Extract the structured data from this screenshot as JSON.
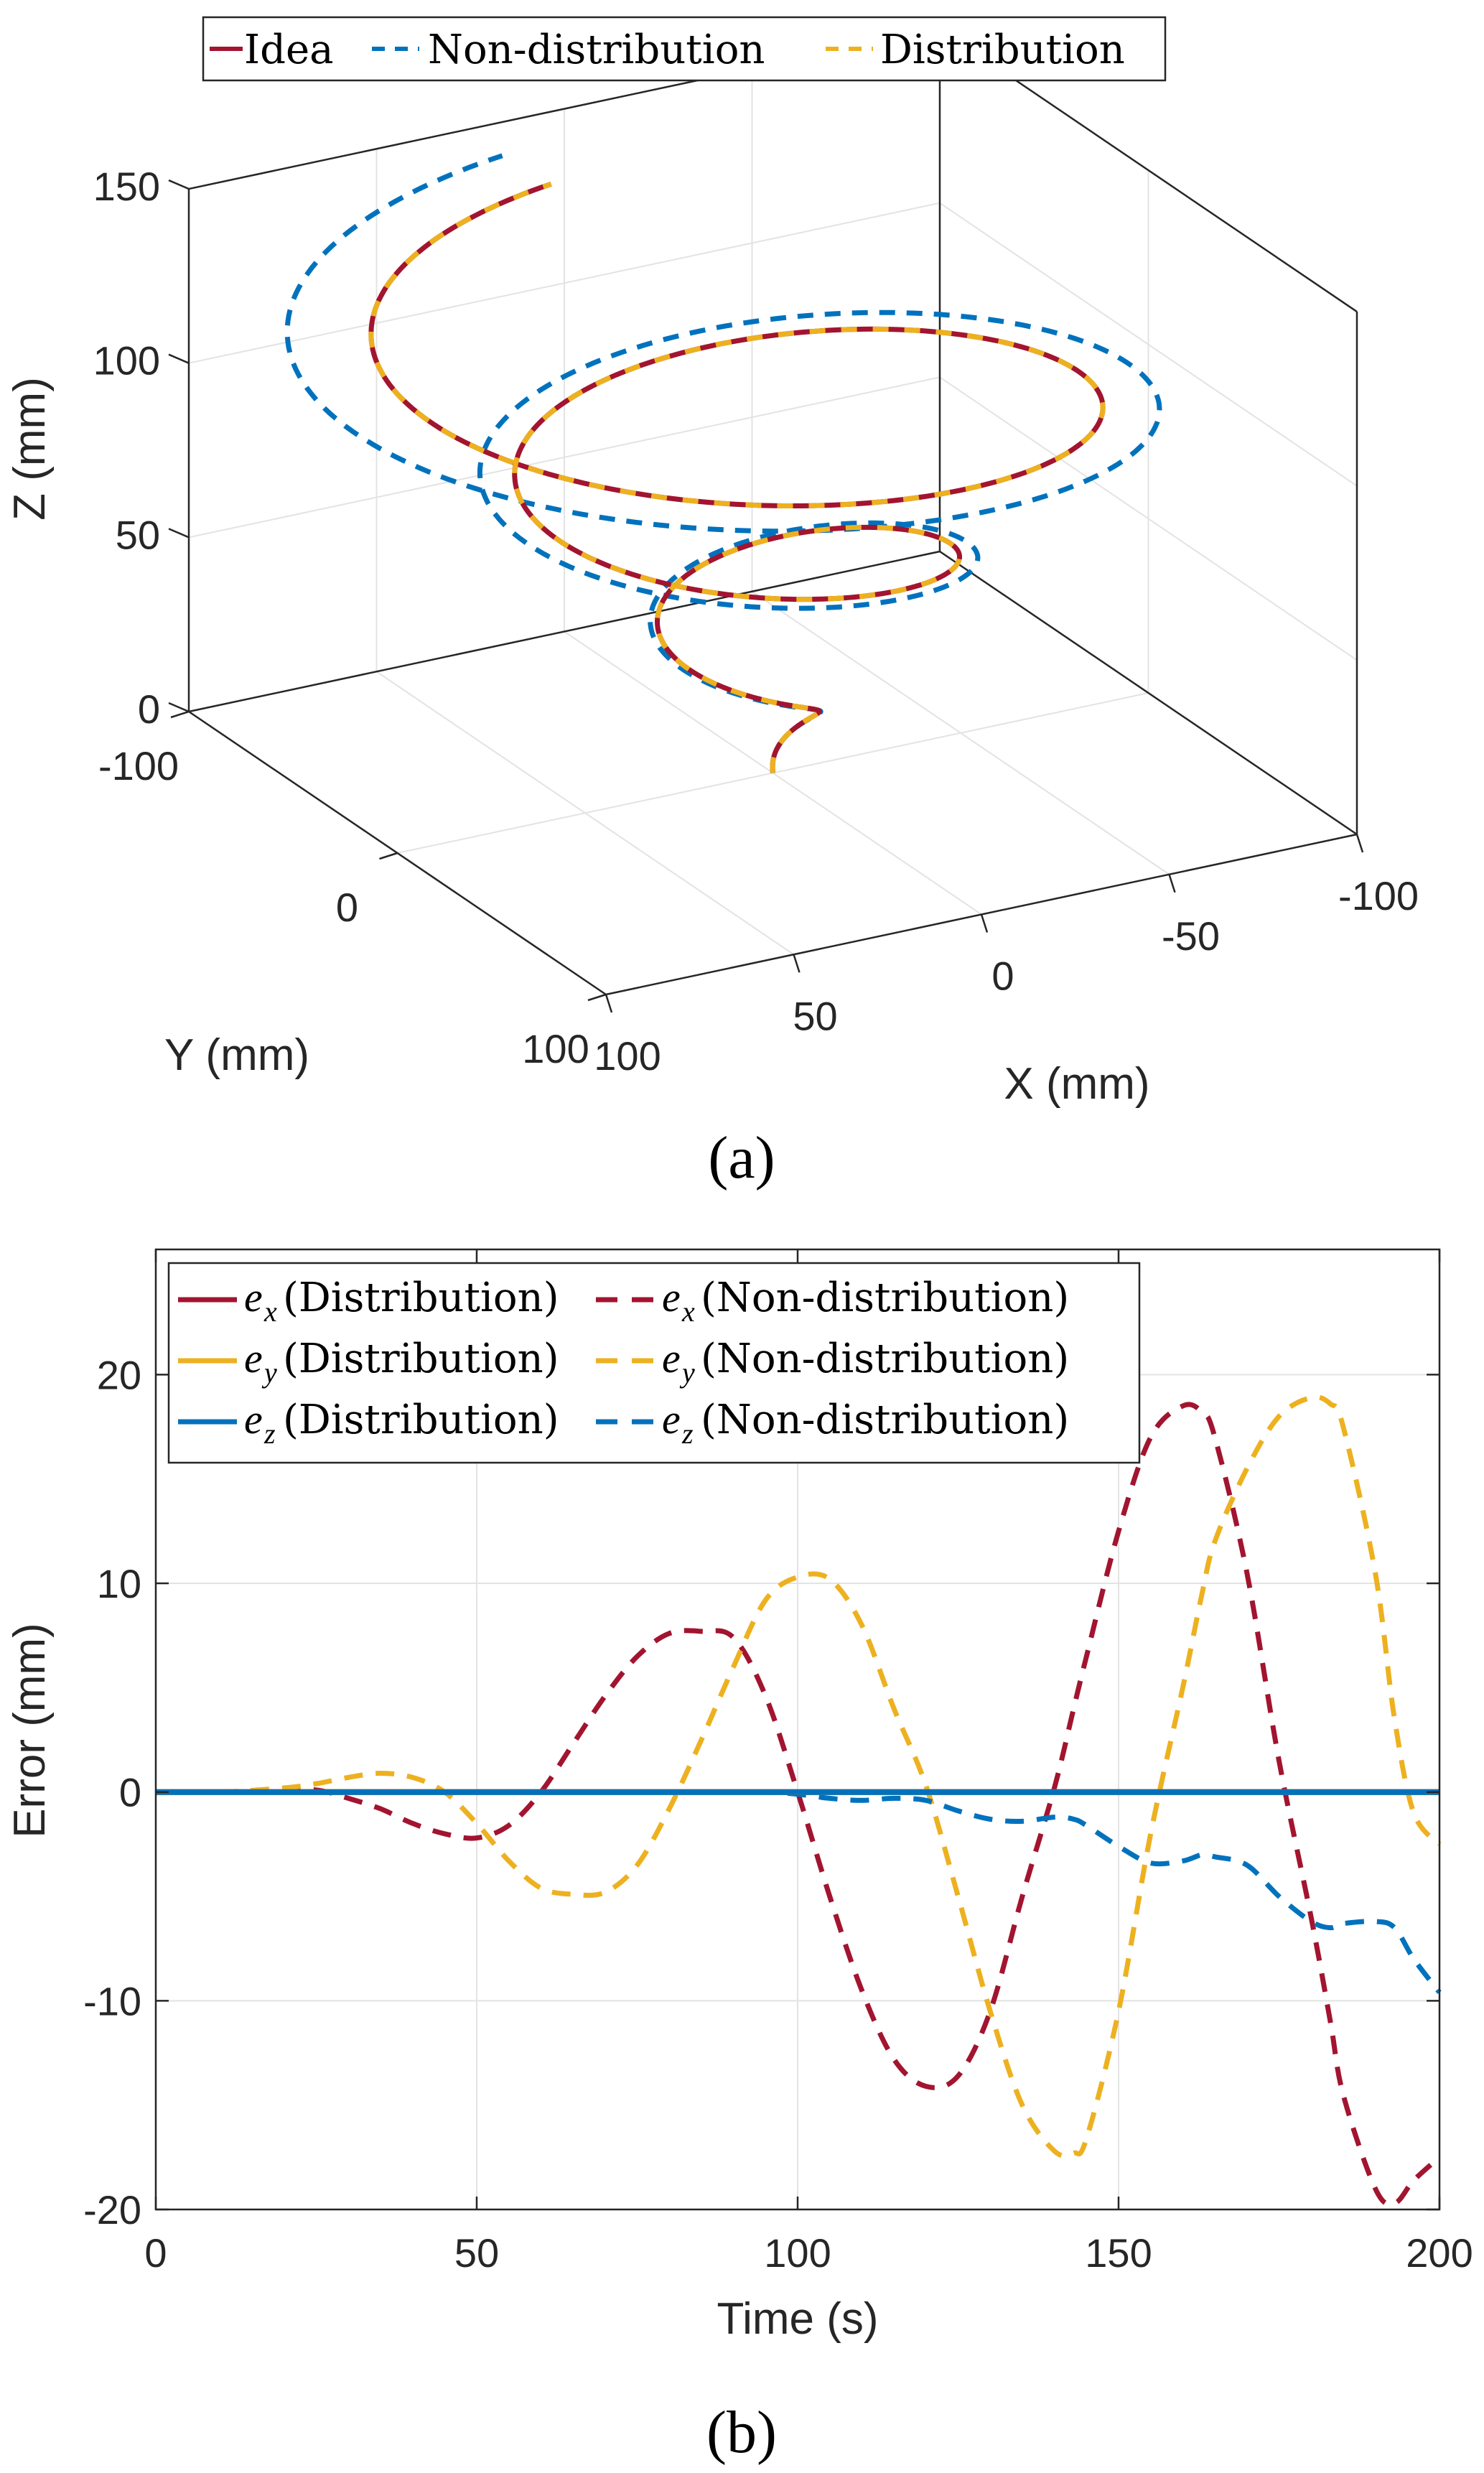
{
  "colors": {
    "red": "#A2142F",
    "blue": "#0072BD",
    "yellow": "#EDB120",
    "axis": "#262626",
    "grid": "#e3e3e3"
  },
  "chart_data": [
    {
      "type": "line",
      "subtype": "3d-line",
      "caption": "(a)",
      "xlabel": "X (mm)",
      "ylabel": "Y (mm)",
      "zlabel": "Z (mm)",
      "xlim": [
        -100,
        100
      ],
      "ylim": [
        -100,
        100
      ],
      "zlim": [
        0,
        150
      ],
      "xticks": [
        "100",
        "50",
        "0",
        "-50",
        "-100"
      ],
      "xtick_values": [
        100,
        50,
        0,
        -50,
        -100
      ],
      "yticks": [
        "-100",
        "0",
        "100"
      ],
      "ytick_values": [
        -100,
        0,
        100
      ],
      "zticks": [
        "0",
        "50",
        "100",
        "150"
      ],
      "ztick_values": [
        0,
        50,
        100,
        150
      ],
      "grid": true,
      "legend": {
        "placement": "top",
        "orientation": "horizontal",
        "entries": [
          {
            "label": "Idea",
            "color": "#A2142F",
            "style": "solid"
          },
          {
            "label": "Non-distribution",
            "color": "#0072BD",
            "style": "dashed"
          },
          {
            "label": "Distribution",
            "color": "#EDB120",
            "style": "dashed"
          }
        ]
      },
      "series": [
        {
          "name": "Idea",
          "description": "conical spiral, radius growing from 0 to ~100 mm while z rises from 0 to ~130 mm over ~3 turns"
        },
        {
          "name": "Non-distribution",
          "description": "spiral following Idea with growing radial deviation, outer rings offset ~10-20 mm"
        },
        {
          "name": "Distribution",
          "description": "spiral overlapping Idea"
        }
      ]
    },
    {
      "type": "line",
      "caption": "(b)",
      "xlabel": "Time (s)",
      "ylabel": "Error (mm)",
      "xlim": [
        0,
        200
      ],
      "ylim": [
        -20,
        26
      ],
      "xticks": [
        "0",
        "50",
        "100",
        "150",
        "200"
      ],
      "xtick_values": [
        0,
        50,
        100,
        150,
        200
      ],
      "yticks": [
        "-20",
        "-10",
        "0",
        "10",
        "20"
      ],
      "ytick_values": [
        -20,
        -10,
        0,
        10,
        20
      ],
      "grid": true,
      "legend": {
        "placement": "top-left",
        "columns": 2,
        "entries": [
          {
            "sym": "e",
            "sub": "x",
            "label": "(Distribution)",
            "color": "#A2142F",
            "style": "solid"
          },
          {
            "sym": "e",
            "sub": "x",
            "label": "(Non-distribution)",
            "color": "#A2142F",
            "style": "dashed"
          },
          {
            "sym": "e",
            "sub": "y",
            "label": "(Distribution)",
            "color": "#EDB120",
            "style": "solid"
          },
          {
            "sym": "e",
            "sub": "y",
            "label": "(Non-distribution)",
            "color": "#EDB120",
            "style": "dashed"
          },
          {
            "sym": "e",
            "sub": "z",
            "label": "(Distribution)",
            "color": "#0072BD",
            "style": "solid"
          },
          {
            "sym": "e",
            "sub": "z",
            "label": "(Non-distribution)",
            "color": "#0072BD",
            "style": "dashed"
          }
        ]
      },
      "x": [
        0,
        10,
        20,
        25,
        30,
        35,
        40,
        45,
        50,
        55,
        60,
        65,
        70,
        75,
        80,
        85,
        90,
        95,
        100,
        105,
        110,
        115,
        120,
        125,
        130,
        135,
        140,
        143,
        145,
        150,
        155,
        160,
        163,
        165,
        170,
        175,
        180,
        183,
        185,
        190,
        193,
        196,
        200
      ],
      "series": [
        {
          "name": "e_x (Distribution)",
          "color": "#A2142F",
          "style": "solid",
          "values": [
            0,
            0,
            0,
            0,
            0,
            0,
            0,
            0,
            0,
            0,
            0,
            0,
            0,
            0,
            0,
            0,
            0,
            0,
            0,
            0,
            0,
            0,
            0,
            0,
            0,
            0,
            0,
            0,
            0,
            0,
            0,
            0,
            0,
            0,
            0,
            0,
            0,
            0,
            0,
            0,
            0,
            0,
            0
          ]
        },
        {
          "name": "e_y (Distribution)",
          "color": "#EDB120",
          "style": "solid",
          "values": [
            0,
            0,
            0,
            0,
            0,
            0,
            0,
            0,
            0,
            0,
            0,
            0,
            0,
            0,
            0,
            0,
            0,
            0,
            0,
            0,
            0,
            0,
            0,
            0,
            0,
            0,
            0,
            0,
            0,
            0,
            0,
            0,
            0,
            0,
            0,
            0,
            0,
            0,
            0,
            0,
            0,
            0,
            0
          ]
        },
        {
          "name": "e_z (Distribution)",
          "color": "#0072BD",
          "style": "solid",
          "values": [
            0,
            0,
            0,
            0,
            0,
            0,
            0,
            0,
            0,
            0,
            0,
            0,
            0,
            0,
            0,
            0,
            0,
            0,
            0,
            0,
            0,
            0,
            0,
            0,
            0,
            0,
            0,
            0,
            0,
            0,
            0,
            0,
            0,
            0,
            0,
            0,
            0,
            0,
            0,
            0,
            0,
            0,
            0
          ]
        },
        {
          "name": "e_x (Non-distribution)",
          "color": "#A2142F",
          "style": "dashed",
          "values": [
            0,
            0,
            0,
            0.1,
            -0.3,
            -0.8,
            -1.5,
            -2.0,
            -2.2,
            -1.6,
            0,
            2.3,
            4.6,
            6.5,
            7.6,
            7.7,
            7.4,
            4.6,
            0,
            -5.0,
            -9.5,
            -12.8,
            -14.1,
            -13.6,
            -10.5,
            -5.0,
            0.2,
            4.0,
            6.5,
            12.5,
            17.0,
            18.5,
            18.2,
            17.0,
            10.5,
            1.5,
            -6.0,
            -11.0,
            -14.5,
            -19.0,
            -19.7,
            -18.6,
            -17.5
          ]
        },
        {
          "name": "e_y (Non-distribution)",
          "color": "#EDB120",
          "style": "dashed",
          "values": [
            0,
            0,
            0.2,
            0.4,
            0.7,
            0.9,
            0.7,
            0,
            -1.5,
            -3.3,
            -4.6,
            -4.9,
            -4.8,
            -3.5,
            -0.8,
            2.5,
            6.0,
            9.2,
            10.3,
            10.2,
            8.0,
            4.0,
            0.3,
            -5.0,
            -10.5,
            -15.0,
            -17.2,
            -17.3,
            -16.6,
            -10.5,
            -2.0,
            5.0,
            9.5,
            12.0,
            15.5,
            18.0,
            18.9,
            18.6,
            17.5,
            10.5,
            3.5,
            -1.0,
            -2.5
          ]
        },
        {
          "name": "e_z (Non-distribution)",
          "color": "#0072BD",
          "style": "dashed",
          "values": [
            0,
            0,
            0,
            0,
            0,
            0,
            0,
            0,
            0,
            0,
            0,
            0,
            0,
            0,
            0,
            0,
            0,
            0,
            -0.1,
            -0.3,
            -0.4,
            -0.3,
            -0.4,
            -0.9,
            -1.3,
            -1.4,
            -1.2,
            -1.3,
            -1.6,
            -2.6,
            -3.4,
            -3.3,
            -3.0,
            -3.1,
            -3.5,
            -5.0,
            -6.2,
            -6.5,
            -6.3,
            -6.2,
            -6.5,
            -8.0,
            -9.6
          ]
        }
      ]
    }
  ]
}
